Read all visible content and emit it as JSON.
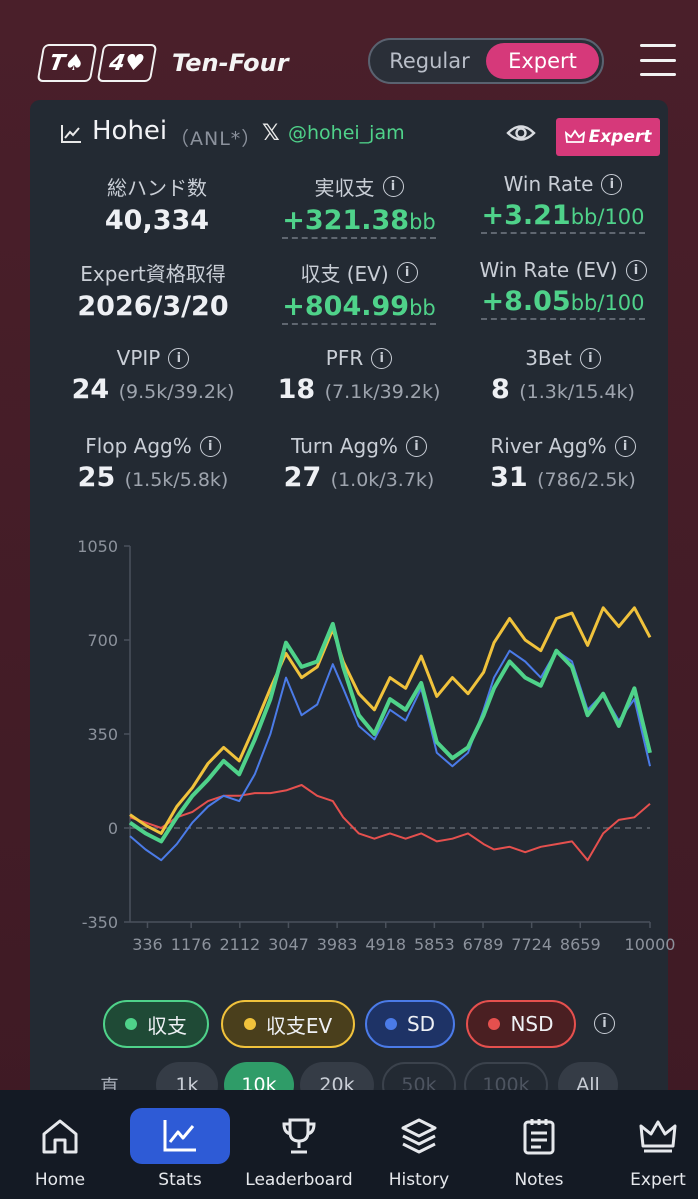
{
  "header": {
    "card1": "T♠",
    "card2": "4♥",
    "brand": "Ten-Four",
    "modes": [
      "Regular",
      "Expert"
    ],
    "active_mode": "Expert"
  },
  "profile": {
    "name": "Hohei",
    "tag": "（ANL*）",
    "x_handle": "@hohei_jam",
    "badge": "Expert"
  },
  "stats": {
    "total_hands": {
      "label": "総ハンド数",
      "value": "40,334"
    },
    "real_profit": {
      "label": "実収支",
      "value": "+321.38",
      "unit": "bb"
    },
    "win_rate": {
      "label": "Win Rate",
      "value": "+3.21",
      "unit": "bb/100"
    },
    "expert_date": {
      "label": "Expert資格取得",
      "value": "2026/3/20"
    },
    "profit_ev": {
      "label": "収支 (EV)",
      "value": "+804.99",
      "unit": "bb"
    },
    "win_rate_ev": {
      "label": "Win Rate (EV)",
      "value": "+8.05",
      "unit": "bb/100"
    },
    "vpip": {
      "label": "VPIP",
      "value": "24",
      "sub": "(9.5k/39.2k)"
    },
    "pfr": {
      "label": "PFR",
      "value": "18",
      "sub": "(7.1k/39.2k)"
    },
    "threebet": {
      "label": "3Bet",
      "value": "8",
      "sub": "(1.3k/15.4k)"
    },
    "flop_agg": {
      "label": "Flop Agg%",
      "value": "25",
      "sub": "(1.5k/5.8k)"
    },
    "turn_agg": {
      "label": "Turn Agg%",
      "value": "27",
      "sub": "(1.0k/3.7k)"
    },
    "river_agg": {
      "label": "River Agg%",
      "value": "31",
      "sub": "(786/2.5k)"
    }
  },
  "chart_data": {
    "type": "line",
    "xlabel": "",
    "ylabel": "",
    "ylim": [
      -350,
      1050
    ],
    "yticks": [
      1050,
      700,
      350,
      0,
      -350
    ],
    "xticks": [
      336,
      1176,
      2112,
      3047,
      3983,
      4918,
      5853,
      6789,
      7724,
      8659,
      10000
    ],
    "xlim": [
      0,
      10000
    ],
    "zero_line": "dashed",
    "series": [
      {
        "name": "収支EV",
        "color": "#f0c23c",
        "x": [
          0,
          300,
          600,
          900,
          1200,
          1500,
          1800,
          2100,
          2400,
          2700,
          3000,
          3300,
          3600,
          3900,
          4100,
          4400,
          4700,
          5000,
          5300,
          5600,
          5900,
          6200,
          6500,
          6800,
          7000,
          7300,
          7600,
          7900,
          8200,
          8500,
          8800,
          9100,
          9400,
          9700,
          10000
        ],
        "y": [
          50,
          10,
          -20,
          80,
          150,
          240,
          300,
          250,
          380,
          520,
          650,
          560,
          600,
          740,
          620,
          500,
          440,
          560,
          520,
          640,
          490,
          560,
          500,
          580,
          690,
          780,
          700,
          660,
          780,
          800,
          680,
          820,
          750,
          820,
          710
        ]
      },
      {
        "name": "収支",
        "color": "#4fd28a",
        "x": [
          0,
          300,
          600,
          900,
          1200,
          1500,
          1800,
          2100,
          2400,
          2700,
          3000,
          3300,
          3600,
          3900,
          4100,
          4400,
          4700,
          5000,
          5300,
          5600,
          5900,
          6200,
          6500,
          6800,
          7000,
          7300,
          7600,
          7900,
          8200,
          8500,
          8800,
          9100,
          9400,
          9700,
          10000
        ],
        "y": [
          20,
          -20,
          -50,
          40,
          120,
          180,
          250,
          200,
          330,
          480,
          690,
          600,
          620,
          760,
          600,
          420,
          350,
          480,
          440,
          540,
          320,
          260,
          300,
          420,
          520,
          620,
          560,
          530,
          660,
          600,
          420,
          500,
          380,
          520,
          280
        ]
      },
      {
        "name": "SD",
        "color": "#4b7be8",
        "x": [
          0,
          300,
          600,
          900,
          1200,
          1500,
          1800,
          2100,
          2400,
          2700,
          3000,
          3300,
          3600,
          3900,
          4100,
          4400,
          4700,
          5000,
          5300,
          5600,
          5900,
          6200,
          6500,
          6800,
          7000,
          7300,
          7600,
          7900,
          8200,
          8500,
          8800,
          9100,
          9400,
          9700,
          10000
        ],
        "y": [
          -30,
          -80,
          -120,
          -60,
          20,
          80,
          120,
          100,
          200,
          350,
          560,
          420,
          460,
          610,
          520,
          380,
          330,
          440,
          400,
          520,
          280,
          230,
          280,
          440,
          560,
          660,
          620,
          560,
          660,
          620,
          440,
          500,
          400,
          480,
          230
        ]
      },
      {
        "name": "NSD",
        "color": "#e5504e",
        "x": [
          0,
          300,
          600,
          900,
          1200,
          1500,
          1800,
          2100,
          2400,
          2700,
          3000,
          3300,
          3600,
          3900,
          4100,
          4400,
          4700,
          5000,
          5300,
          5600,
          5900,
          6200,
          6500,
          6800,
          7000,
          7300,
          7600,
          7900,
          8200,
          8500,
          8800,
          9100,
          9400,
          9700,
          10000
        ],
        "y": [
          40,
          20,
          0,
          40,
          60,
          100,
          120,
          120,
          130,
          130,
          140,
          160,
          120,
          100,
          40,
          -20,
          -40,
          -20,
          -40,
          -20,
          -50,
          -40,
          -20,
          -60,
          -80,
          -70,
          -90,
          -70,
          -60,
          -50,
          -120,
          -20,
          30,
          40,
          90
        ]
      }
    ]
  },
  "legend": [
    {
      "label": "収支",
      "color": "#4fd28a",
      "bg": "#1f4a36"
    },
    {
      "label": "収支EV",
      "color": "#f0c23c",
      "bg": "#4a3f1c"
    },
    {
      "label": "SD",
      "color": "#4b7be8",
      "bg": "#1e3366"
    },
    {
      "label": "NSD",
      "color": "#e5504e",
      "bg": "#4a1f22"
    }
  ],
  "range": {
    "label": "直近:",
    "options": [
      "1k",
      "10k",
      "20k",
      "50k",
      "100k",
      "All"
    ],
    "active": "10k"
  },
  "nav": [
    {
      "label": "Home",
      "icon": "home-icon"
    },
    {
      "label": "Stats",
      "icon": "chart-icon"
    },
    {
      "label": "Leaderboard",
      "icon": "trophy-icon"
    },
    {
      "label": "History",
      "icon": "layers-icon"
    },
    {
      "label": "Notes",
      "icon": "notes-icon"
    },
    {
      "label": "Expert",
      "icon": "crown-icon"
    }
  ],
  "active_nav": "Stats"
}
